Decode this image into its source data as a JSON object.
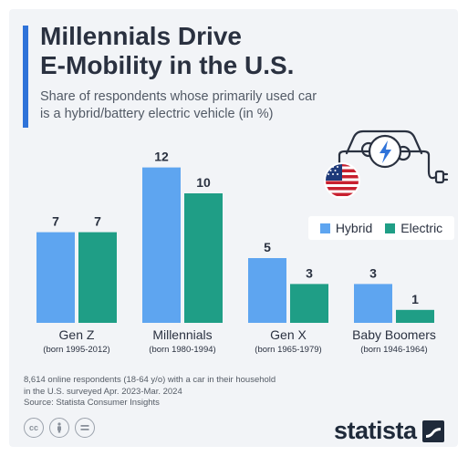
{
  "header": {
    "title_line1": "Millennials Drive",
    "title_line2": "E-Mobility in the U.S.",
    "subtitle_line1": "Share of respondents whose primarily used car",
    "subtitle_line2": "is a hybrid/battery electric vehicle (in %)"
  },
  "legend": {
    "hybrid": "Hybrid",
    "electric": "Electric"
  },
  "colors": {
    "hybrid": "#5ea5f0",
    "electric": "#1f9e86",
    "accent": "#2f73d9"
  },
  "icons": [
    "electric-car-icon",
    "us-flag-icon",
    "cc-license-icon",
    "attribution-icon",
    "no-derivatives-icon",
    "statista-logo-icon"
  ],
  "chart_data": {
    "type": "bar",
    "categories": [
      "Gen Z",
      "Millennials",
      "Gen X",
      "Baby Boomers"
    ],
    "category_sublabels": [
      "(born 1995-2012)",
      "(born 1980-1994)",
      "(born 1965-1979)",
      "(born 1946-1964)"
    ],
    "series": [
      {
        "name": "Hybrid",
        "values": [
          7,
          12,
          5,
          3
        ]
      },
      {
        "name": "Electric",
        "values": [
          7,
          10,
          3,
          1
        ]
      }
    ],
    "ylim": [
      0,
      12
    ],
    "grid": false,
    "legend_position": "right"
  },
  "notes": {
    "line1": "8,614 online respondents (18-64 y/o) with a car in their household",
    "line2": "in the U.S. surveyed Apr. 2023-Mar. 2024",
    "source": "Source: Statista Consumer Insights"
  },
  "brand": {
    "name": "statista"
  }
}
